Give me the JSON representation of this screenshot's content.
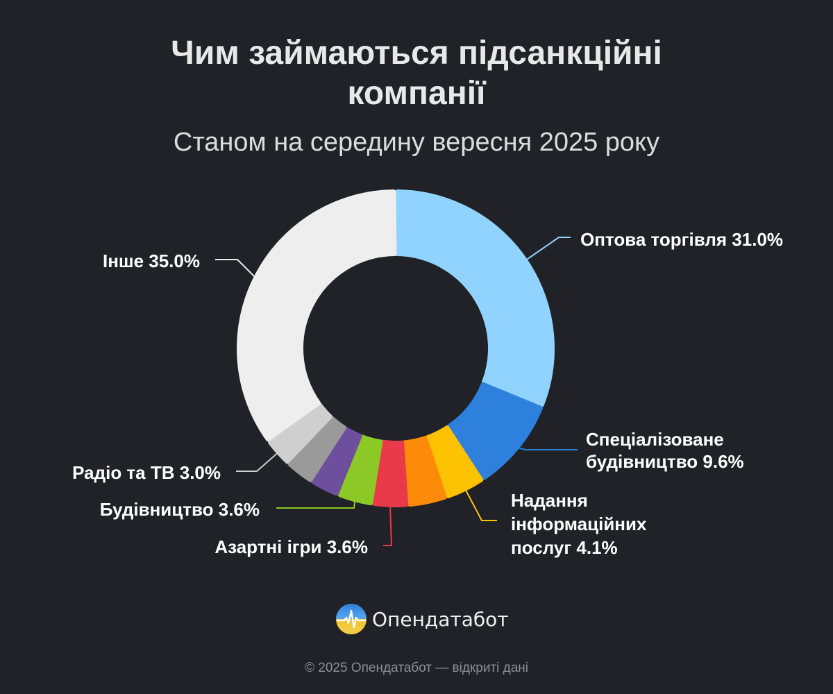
{
  "header": {
    "title_line1": "Чим займаються підсанкційні",
    "title_line2": "компанії",
    "subtitle": "Станом на середину вересня 2025 року"
  },
  "brand": {
    "name": "Опендатабот",
    "logo_icon": "opendatabot-logo-icon"
  },
  "footer": {
    "text": "© 2025 Опендатабот — відкриті дані"
  },
  "chart_data": {
    "type": "pie",
    "style": "donut",
    "unit": "%",
    "slices": [
      {
        "name": "Оптова торгівля",
        "value": 31.0,
        "label_lines": [
          "Оптова торгівля 31.0%"
        ],
        "color": "#8fd3fe"
      },
      {
        "name": "Спеціалізоване будівництво",
        "value": 9.6,
        "label_lines": [
          "Спеціалізоване",
          "будівництво 9.6%"
        ],
        "color": "#2d80dc"
      },
      {
        "name": "Надання інформаційних послуг",
        "value": 4.1,
        "label_lines": [
          "Надання",
          "інформаційних",
          "послуг 4.1%"
        ],
        "color": "#fdc300"
      },
      {
        "name": "",
        "value": 4.0,
        "label_lines": [],
        "color": "#fe8a0a"
      },
      {
        "name": "Азартні ігри",
        "value": 3.6,
        "label_lines": [
          "Азартні ігри 3.6%"
        ],
        "color": "#e93a4a"
      },
      {
        "name": "Будівництво",
        "value": 3.6,
        "label_lines": [
          "Будівництво 3.6%"
        ],
        "color": "#8cc927"
      },
      {
        "name": "",
        "value": 3.0,
        "label_lines": [],
        "color": "#6e4f9e"
      },
      {
        "name": "",
        "value": 3.0,
        "label_lines": [],
        "color": "#9a9a9a"
      },
      {
        "name": "Радіо та ТВ",
        "value": 3.0,
        "label_lines": [
          "Радіо та ТВ 3.0%"
        ],
        "color": "#cfcfcf"
      },
      {
        "name": "Інше",
        "value": 35.0,
        "label_lines": [
          "Інше 35.0%"
        ],
        "color": "#eeeeee"
      }
    ]
  }
}
